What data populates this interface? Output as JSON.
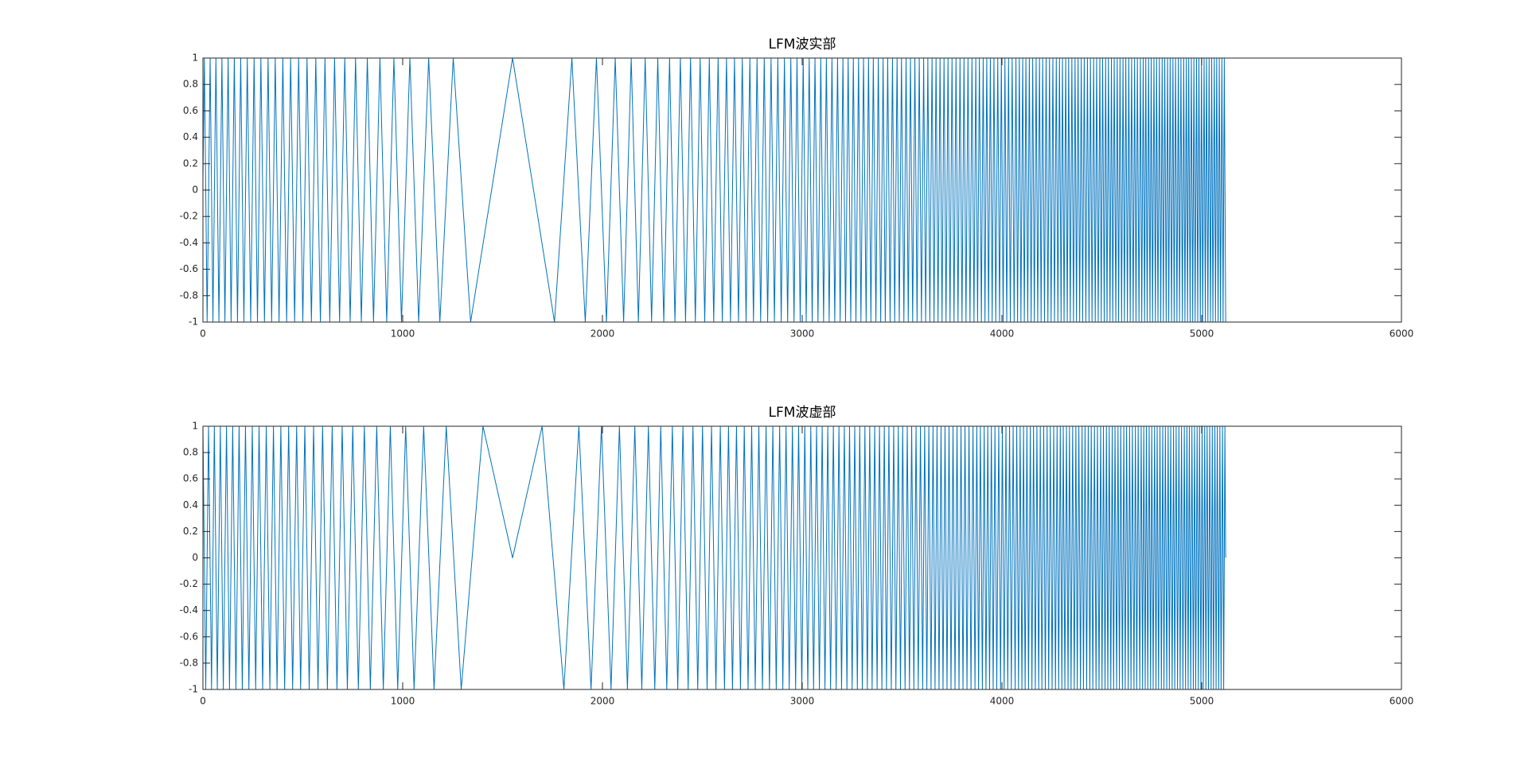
{
  "chart_data": [
    {
      "type": "line",
      "title": "LFM波实部",
      "color": "#0072bd",
      "xlim": [
        0,
        6000
      ],
      "xticks": [
        0,
        1000,
        2000,
        3000,
        4000,
        5000,
        6000
      ],
      "ylim": [
        -1,
        1
      ],
      "yticks": [
        -1,
        -0.8,
        -0.6,
        -0.4,
        -0.2,
        0,
        0.2,
        0.4,
        0.6,
        0.8,
        1
      ],
      "x": [
        0,
        7,
        21,
        36,
        50,
        65,
        80,
        95,
        110,
        126,
        141,
        157,
        173,
        189,
        205,
        222,
        239,
        256,
        273,
        290,
        308,
        326,
        344,
        362,
        381,
        400,
        419,
        439,
        459,
        479,
        500,
        521,
        543,
        565,
        588,
        611,
        635,
        659,
        684,
        710,
        737,
        764,
        793,
        823,
        854,
        886,
        920,
        956,
        994,
        1036,
        1080,
        1130,
        1186,
        1253,
        1340,
        1550,
        1760,
        1847,
        1914,
        1970,
        2020,
        2064,
        2106,
        2144,
        2180,
        2214,
        2246,
        2277,
        2307,
        2336,
        2363,
        2390,
        2416,
        2441,
        2465,
        2489,
        2512,
        2535,
        2557,
        2579,
        2600,
        2621,
        2641,
        2661,
        2681,
        2700,
        2719,
        2738,
        2756,
        2774,
        2792,
        2810,
        2827,
        2844,
        2861,
        2878,
        2895,
        2911,
        2927,
        2943,
        2959,
        2974,
        2990,
        3005,
        3020,
        3035,
        3050,
        3064,
        3079,
        3093,
        3107,
        3121,
        3135,
        3149,
        3163,
        3177,
        3190,
        3204,
        3217,
        3230,
        3243,
        3256,
        3269,
        3282,
        3294,
        3307,
        3320,
        3332,
        3344,
        3356,
        3369,
        3381,
        3393,
        3405,
        3416,
        3428,
        3440,
        3452,
        3463,
        3475,
        3486,
        3497,
        3509,
        3520,
        3531,
        3542,
        3553,
        3564,
        3575,
        3586,
        3597,
        3608,
        3618,
        3629,
        3639,
        3650,
        3660,
        3670,
        3680,
        3690,
        3700,
        3710,
        3720,
        3730,
        3740,
        3750,
        3760,
        3770,
        3780,
        3790,
        3800,
        3810,
        3820,
        3830,
        3840,
        3850,
        3860,
        3869,
        3878,
        3887,
        3897,
        3906,
        3915,
        3924,
        3933,
        3942,
        3951,
        3960,
        3969,
        3979,
        3988,
        3997,
        4006,
        4015,
        4024,
        4033,
        4042,
        4051,
        4061,
        4070,
        4078,
        4087,
        4095,
        4104,
        4112,
        4120,
        4129,
        4137,
        4146,
        4154,
        4162,
        4171,
        4179,
        4188,
        4196,
        4204,
        4213,
        4221,
        4230,
        4238,
        4246,
        4255,
        4263,
        4272,
        4280,
        4288,
        4296,
        4303,
        4311,
        4319,
        4327,
        4334,
        4342,
        4350,
        4358,
        4366,
        4373,
        4381,
        4389,
        4397,
        4404,
        4412,
        4420,
        4428,
        4436,
        4443,
        4451,
        4459,
        4467,
        4474,
        4482,
        4490,
        4497,
        4504,
        4512,
        4519,
        4526,
        4533,
        4541,
        4548,
        4555,
        4562,
        4570,
        4577,
        4584,
        4591,
        4599,
        4606,
        4613,
        4620,
        4628,
        4635,
        4642,
        4649,
        4657,
        4664,
        4671,
        4678,
        4686,
        4693,
        4700,
        4707,
        4714,
        4720,
        4727,
        4734,
        4741,
        4747,
        4754,
        4761,
        4768,
        4774,
        4781,
        4788,
        4795,
        4802,
        4808,
        4815,
        4822,
        4829,
        4835,
        4842,
        4849,
        4856,
        4862,
        4869,
        4876,
        4883,
        4889,
        4896,
        4903,
        4910,
        4916,
        4923,
        4929,
        4935,
        4942,
        4948,
        4955,
        4961,
        4967,
        4974,
        4980,
        4986,
        4993,
        4999,
        5005,
        5012,
        5018,
        5024,
        5031,
        5037,
        5044,
        5050,
        5056,
        5063,
        5069,
        5075,
        5082,
        5088,
        5094,
        5101,
        5107,
        5113,
        5120
      ],
      "values": [
        0.07,
        1,
        -1,
        1,
        -1,
        1,
        -1,
        1,
        -1,
        1,
        -1,
        1,
        -1,
        1,
        -1,
        1,
        -1,
        1,
        -1,
        1,
        -1,
        1,
        -1,
        1,
        -1,
        1,
        -1,
        1,
        -1,
        1,
        -1,
        1,
        -1,
        1,
        -1,
        1,
        -1,
        1,
        -1,
        1,
        -1,
        1,
        -1,
        1,
        -1,
        1,
        -1,
        1,
        -1,
        1,
        -1,
        1,
        -1,
        1,
        -1,
        1,
        -1,
        1,
        -1,
        1,
        -1,
        1,
        -1,
        1,
        -1,
        1,
        -1,
        1,
        -1,
        1,
        -1,
        1,
        -1,
        1,
        -1,
        1,
        -1,
        1,
        -1,
        1,
        -1,
        1,
        -1,
        1,
        -1,
        1,
        -1,
        1,
        -1,
        1,
        -1,
        1,
        -1,
        1,
        -1,
        1,
        -1,
        1,
        -1,
        1,
        -1,
        1,
        -1,
        1,
        -1,
        1,
        -1,
        1,
        -1,
        1,
        -1,
        1,
        -1,
        1,
        -1,
        1,
        -1,
        1,
        -1,
        1,
        -1,
        1,
        -1,
        1,
        -1,
        1,
        -1,
        1,
        -1,
        1,
        -1,
        1,
        -1,
        1,
        -1,
        1,
        -1,
        1,
        -1,
        1,
        -1,
        1,
        -1,
        1,
        -1,
        1,
        -1,
        1,
        -1,
        1,
        -1,
        1,
        -1,
        1,
        -1,
        1,
        -1,
        1,
        -1,
        1,
        -1,
        1,
        -1,
        1,
        -1,
        1,
        -1,
        1,
        -1,
        1,
        -1,
        1,
        -1,
        1,
        -1,
        1,
        -1,
        1,
        -1,
        1,
        -1,
        1,
        -1,
        1,
        -1,
        1,
        -1,
        1,
        -1,
        1,
        -1,
        1,
        -1,
        1,
        -1,
        1,
        -1,
        1,
        -1,
        1,
        -1,
        1,
        -1,
        1,
        -1,
        1,
        -1,
        1,
        -1,
        1,
        -1,
        1,
        -1,
        1,
        -1,
        1,
        -1,
        1,
        -1,
        1,
        -1,
        1,
        -1,
        1,
        -1,
        1,
        -1,
        1,
        -1,
        1,
        -1,
        1,
        -1,
        1,
        -1,
        1,
        -1,
        1,
        -1,
        1,
        -1,
        1,
        -1,
        1,
        -1,
        1,
        -1,
        1,
        -1,
        1,
        -1,
        1,
        -1,
        1,
        -1,
        1,
        -1,
        1,
        -1,
        1,
        -1,
        1,
        -1,
        1,
        -1,
        1,
        -1,
        1,
        -1,
        1,
        -1,
        1,
        -1,
        1,
        -1,
        1,
        -1,
        1,
        -1,
        1,
        -1,
        1,
        -1,
        1,
        -1,
        1,
        -1,
        1,
        -1,
        1,
        -1,
        1,
        -1,
        1,
        -1,
        1,
        -1,
        1,
        -1,
        1,
        -1,
        1,
        -1,
        1,
        -1,
        1,
        -1,
        1,
        -1,
        1,
        -1,
        1,
        -1,
        1,
        -1,
        1,
        -1,
        1,
        -1,
        1,
        -1,
        1,
        -1,
        1,
        -1,
        1,
        -1,
        1,
        -1,
        1,
        -1,
        1,
        -1,
        1,
        -1,
        1,
        -1,
        1,
        -1,
        1,
        -1,
        1,
        -1,
        1,
        -1
      ]
    },
    {
      "type": "line",
      "title": "LFM波虚部",
      "color": "#0072bd",
      "xlim": [
        0,
        6000
      ],
      "xticks": [
        0,
        1000,
        2000,
        3000,
        4000,
        5000,
        6000
      ],
      "ylim": [
        -1,
        1
      ],
      "yticks": [
        -1,
        -0.8,
        -0.6,
        -0.4,
        -0.2,
        0,
        0.2,
        0.4,
        0.6,
        0.8,
        1
      ],
      "x": [
        0,
        14,
        28,
        43,
        57,
        72,
        87,
        102,
        118,
        133,
        149,
        165,
        181,
        197,
        213,
        230,
        247,
        264,
        281,
        299,
        317,
        335,
        353,
        371,
        390,
        409,
        429,
        449,
        469,
        489,
        510,
        532,
        554,
        576,
        599,
        623,
        647,
        671,
        697,
        723,
        750,
        778,
        808,
        838,
        870,
        903,
        938,
        975,
        1015,
        1057,
        1105,
        1157,
        1218,
        1293,
        1402,
        1550,
        1698,
        1807,
        1882,
        1943,
        1995,
        2043,
        2085,
        2125,
        2162,
        2197,
        2230,
        2262,
        2292,
        2322,
        2350,
        2377,
        2403,
        2429,
        2453,
        2477,
        2501,
        2524,
        2546,
        2568,
        2590,
        2611,
        2631,
        2651,
        2671,
        2691,
        2710,
        2729,
        2747,
        2765,
        2783,
        2801,
        2819,
        2836,
        2853,
        2870,
        2887,
        2903,
        2919,
        2935,
        2951,
        2967,
        2982,
        2998,
        3013,
        3028,
        3043,
        3057,
        3072,
        3086,
        3100,
        3114,
        3128,
        3142,
        3156,
        3170,
        3184,
        3197,
        3211,
        3224,
        3237,
        3250,
        3263,
        3276,
        3288,
        3301,
        3314,
        3326,
        3338,
        3350,
        3363,
        3375,
        3387,
        3399,
        3411,
        3422,
        3434,
        3446,
        3458,
        3469,
        3481,
        3492,
        3503,
        3515,
        3526,
        3537,
        3548,
        3559,
        3570,
        3581,
        3592,
        3603,
        3613,
        3624,
        3634,
        3645,
        3655,
        3665,
        3675,
        3685,
        3695,
        3705,
        3715,
        3725,
        3735,
        3745,
        3755,
        3765,
        3775,
        3785,
        3795,
        3805,
        3815,
        3825,
        3835,
        3845,
        3855,
        3865,
        3874,
        3883,
        3892,
        3902,
        3911,
        3920,
        3929,
        3938,
        3947,
        3956,
        3965,
        3974,
        3984,
        3993,
        4002,
        4011,
        4020,
        4029,
        4038,
        4047,
        4056,
        4066,
        4074,
        4083,
        4091,
        4100,
        4108,
        4116,
        4125,
        4133,
        4142,
        4150,
        4158,
        4167,
        4175,
        4184,
        4192,
        4200,
        4209,
        4217,
        4226,
        4234,
        4242,
        4251,
        4259,
        4268,
        4276,
        4284,
        4292,
        4300,
        4307,
        4315,
        4323,
        4331,
        4338,
        4346,
        4354,
        4362,
        4370,
        4377,
        4385,
        4393,
        4401,
        4408,
        4416,
        4424,
        4432,
        4440,
        4447,
        4455,
        4463,
        4471,
        4478,
        4486,
        4494,
        4501,
        4508,
        4516,
        4523,
        4530,
        4537,
        4545,
        4552,
        4559,
        4566,
        4574,
        4581,
        4588,
        4595,
        4603,
        4610,
        4617,
        4624,
        4632,
        4639,
        4646,
        4653,
        4661,
        4668,
        4675,
        4682,
        4690,
        4697,
        4704,
        4710,
        4717,
        4723,
        4730,
        4737,
        4744,
        4750,
        4757,
        4764,
        4771,
        4777,
        4784,
        4791,
        4798,
        4805,
        4811,
        4818,
        4825,
        4832,
        4838,
        4845,
        4852,
        4859,
        4865,
        4872,
        4879,
        4886,
        4892,
        4899,
        4906,
        4913,
        4919,
        4926,
        4932,
        4938,
        4945,
        4951,
        4958,
        4964,
        4970,
        4977,
        4983,
        4989,
        4996,
        5002,
        5008,
        5015,
        5021,
        5027,
        5034,
        5040,
        5047,
        5053,
        5059,
        5066,
        5072,
        5078,
        5085,
        5091,
        5097,
        5104,
        5110,
        5116,
        5120
      ],
      "values": [
        1,
        -1,
        1,
        -1,
        1,
        -1,
        1,
        -1,
        1,
        -1,
        1,
        -1,
        1,
        -1,
        1,
        -1,
        1,
        -1,
        1,
        -1,
        1,
        -1,
        1,
        -1,
        1,
        -1,
        1,
        -1,
        1,
        -1,
        1,
        -1,
        1,
        -1,
        1,
        -1,
        1,
        -1,
        1,
        -1,
        1,
        -1,
        1,
        -1,
        1,
        -1,
        1,
        -1,
        1,
        -1,
        1,
        -1,
        1,
        -1,
        1,
        0,
        1,
        -1,
        1,
        -1,
        1,
        -1,
        1,
        -1,
        1,
        -1,
        1,
        -1,
        1,
        -1,
        1,
        -1,
        1,
        -1,
        1,
        -1,
        1,
        -1,
        1,
        -1,
        1,
        -1,
        1,
        -1,
        1,
        -1,
        1,
        -1,
        1,
        -1,
        1,
        -1,
        1,
        -1,
        1,
        -1,
        1,
        -1,
        1,
        -1,
        1,
        -1,
        1,
        -1,
        1,
        -1,
        1,
        -1,
        1,
        -1,
        1,
        -1,
        1,
        -1,
        1,
        -1,
        1,
        -1,
        1,
        -1,
        1,
        -1,
        1,
        -1,
        1,
        -1,
        1,
        -1,
        1,
        -1,
        1,
        -1,
        1,
        -1,
        1,
        -1,
        1,
        -1,
        1,
        -1,
        1,
        -1,
        1,
        -1,
        1,
        -1,
        1,
        -1,
        1,
        -1,
        1,
        -1,
        1,
        -1,
        1,
        -1,
        1,
        -1,
        1,
        -1,
        1,
        -1,
        1,
        -1,
        1,
        -1,
        1,
        -1,
        1,
        -1,
        1,
        -1,
        1,
        -1,
        1,
        -1,
        1,
        -1,
        1,
        -1,
        1,
        -1,
        1,
        -1,
        1,
        -1,
        1,
        -1,
        1,
        -1,
        1,
        -1,
        1,
        -1,
        1,
        -1,
        1,
        -1,
        1,
        -1,
        1,
        -1,
        1,
        -1,
        1,
        -1,
        1,
        -1,
        1,
        -1,
        1,
        -1,
        1,
        -1,
        1,
        -1,
        1,
        -1,
        1,
        -1,
        1,
        -1,
        1,
        -1,
        1,
        -1,
        1,
        -1,
        1,
        -1,
        1,
        -1,
        1,
        -1,
        1,
        -1,
        1,
        -1,
        1,
        -1,
        1,
        -1,
        1,
        -1,
        1,
        -1,
        1,
        -1,
        1,
        -1,
        1,
        -1,
        1,
        -1,
        1,
        -1,
        1,
        -1,
        1,
        -1,
        1,
        -1,
        1,
        -1,
        1,
        -1,
        1,
        -1,
        1,
        -1,
        1,
        -1,
        1,
        -1,
        1,
        -1,
        1,
        -1,
        1,
        -1,
        1,
        -1,
        1,
        -1,
        1,
        -1,
        1,
        -1,
        1,
        -1,
        1,
        -1,
        1,
        -1,
        1,
        -1,
        1,
        -1,
        1,
        -1,
        1,
        -1,
        1,
        -1,
        1,
        -1,
        1,
        -1,
        1,
        -1,
        1,
        -1,
        1,
        -1,
        1,
        -1,
        1,
        -1,
        1,
        -1,
        1,
        -1,
        1,
        -1,
        1,
        -1,
        1,
        -1,
        1,
        -1,
        1,
        -1,
        1,
        -1,
        1,
        -1,
        1,
        -1,
        1,
        -1,
        1,
        -1,
        1,
        -1,
        1,
        0
      ]
    }
  ]
}
